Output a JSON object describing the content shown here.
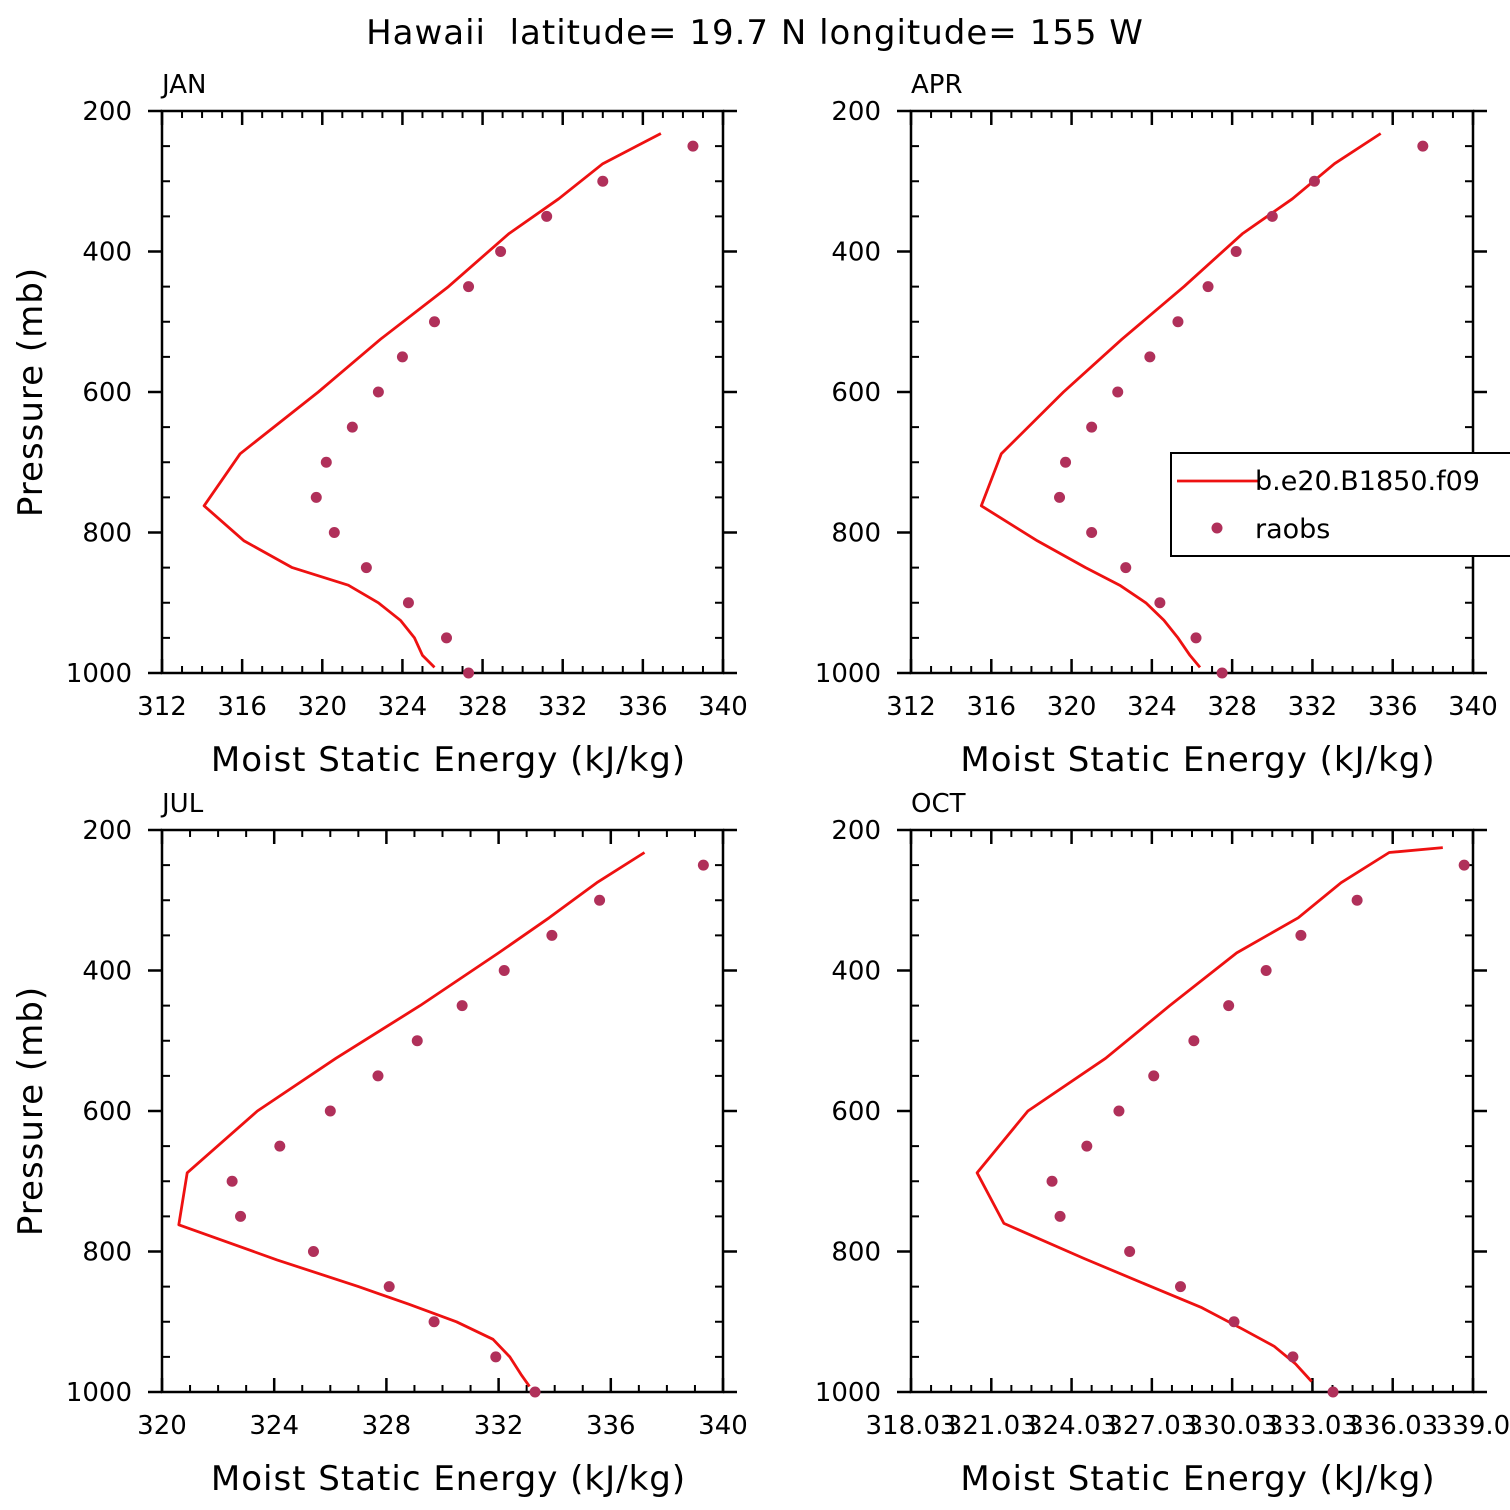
{
  "figure": {
    "title": "Hawaii  latitude= 19.7 N longitude= 155 W",
    "colors": {
      "model_line": "#ee1111",
      "obs_marker": "#b0305a",
      "axes": "#000000",
      "background": "#ffffff"
    }
  },
  "chart_data": [
    {
      "type": "line",
      "panel": "JAN",
      "title": "JAN",
      "xlabel": "Moist Static Energy (kJ/kg)",
      "ylabel": "Pressure (mb)",
      "xlim": [
        312,
        340
      ],
      "ylim": [
        1000,
        200
      ],
      "xticks": [
        312,
        316,
        320,
        324,
        328,
        332,
        336,
        340
      ],
      "xtick_labels": [
        "312",
        "316",
        "320",
        "324",
        "328",
        "332",
        "336",
        "340"
      ],
      "yticks": [
        200,
        400,
        600,
        800,
        1000
      ],
      "ytick_labels": [
        "200",
        "400",
        "600",
        "800",
        "1000"
      ],
      "series": [
        {
          "name": "b.e20.B1850.f09",
          "kind": "line",
          "x": [
            325.6,
            325.0,
            324.6,
            323.9,
            322.8,
            321.3,
            318.5,
            316.1,
            314.1,
            315.9,
            319.8,
            322.9,
            326.3,
            329.3,
            331.8,
            334.0,
            336.9
          ],
          "y": [
            992,
            975,
            950,
            925,
            900,
            875,
            850,
            812,
            762,
            688,
            600,
            525,
            450,
            375,
            325,
            275,
            232
          ]
        },
        {
          "name": "raobs",
          "kind": "scatter",
          "x": [
            327.3,
            326.2,
            324.3,
            322.2,
            320.6,
            319.7,
            320.2,
            321.5,
            322.8,
            324.0,
            325.6,
            327.3,
            328.9,
            331.2,
            334.0,
            338.5
          ],
          "y": [
            1000,
            950,
            900,
            850,
            800,
            750,
            700,
            650,
            600,
            550,
            500,
            450,
            400,
            350,
            300,
            250
          ]
        }
      ]
    },
    {
      "type": "line",
      "panel": "APR",
      "title": "APR",
      "xlabel": "Moist Static Energy (kJ/kg)",
      "ylabel": "",
      "xlim": [
        312,
        340
      ],
      "ylim": [
        1000,
        200
      ],
      "xticks": [
        312,
        316,
        320,
        324,
        328,
        332,
        336,
        340
      ],
      "xtick_labels": [
        "312",
        "316",
        "320",
        "324",
        "328",
        "332",
        "336",
        "340"
      ],
      "yticks": [
        200,
        400,
        600,
        800,
        1000
      ],
      "ytick_labels": [
        "200",
        "400",
        "600",
        "800",
        "1000"
      ],
      "legend": {
        "placement": "right",
        "entries": [
          "b.e20.B1850.f09",
          "raobs"
        ]
      },
      "series": [
        {
          "name": "b.e20.B1850.f09",
          "kind": "line",
          "x": [
            326.4,
            325.9,
            325.3,
            324.6,
            323.7,
            322.4,
            320.7,
            318.3,
            315.5,
            316.5,
            319.6,
            322.5,
            325.6,
            328.5,
            331.0,
            333.1,
            335.4
          ],
          "y": [
            992,
            975,
            950,
            925,
            900,
            875,
            850,
            812,
            762,
            688,
            600,
            525,
            450,
            375,
            325,
            275,
            232
          ]
        },
        {
          "name": "raobs",
          "kind": "scatter",
          "x": [
            327.5,
            326.2,
            324.4,
            322.7,
            321.0,
            319.4,
            319.7,
            321.0,
            322.3,
            323.9,
            325.3,
            326.8,
            328.2,
            330.0,
            332.1,
            337.5
          ],
          "y": [
            1000,
            950,
            900,
            850,
            800,
            750,
            700,
            650,
            600,
            550,
            500,
            450,
            400,
            350,
            300,
            250
          ]
        }
      ]
    },
    {
      "type": "line",
      "panel": "JUL",
      "title": "JUL",
      "xlabel": "Moist Static Energy (kJ/kg)",
      "ylabel": "Pressure (mb)",
      "xlim": [
        320,
        340
      ],
      "ylim": [
        1000,
        200
      ],
      "xticks": [
        320,
        324,
        328,
        332,
        336,
        340
      ],
      "xtick_labels": [
        "320",
        "324",
        "328",
        "332",
        "336",
        "340"
      ],
      "yticks": [
        200,
        400,
        600,
        800,
        1000
      ],
      "ytick_labels": [
        "200",
        "400",
        "600",
        "800",
        "1000"
      ],
      "series": [
        {
          "name": "b.e20.B1850.f09",
          "kind": "line",
          "x": [
            333.1,
            332.8,
            332.4,
            331.8,
            330.5,
            328.8,
            327.0,
            324.1,
            320.6,
            320.9,
            323.4,
            326.2,
            329.2,
            332.0,
            333.8,
            335.5,
            337.2
          ],
          "y": [
            992,
            975,
            950,
            925,
            900,
            875,
            850,
            812,
            762,
            688,
            600,
            525,
            450,
            375,
            325,
            275,
            232
          ]
        },
        {
          "name": "raobs",
          "kind": "scatter",
          "x": [
            333.3,
            331.9,
            329.7,
            328.1,
            325.4,
            322.8,
            322.5,
            324.2,
            326.0,
            327.7,
            329.1,
            330.7,
            332.2,
            333.9,
            335.6,
            339.3
          ],
          "y": [
            1000,
            950,
            900,
            850,
            800,
            750,
            700,
            650,
            600,
            550,
            500,
            450,
            400,
            350,
            300,
            250
          ]
        }
      ]
    },
    {
      "type": "line",
      "panel": "OCT",
      "title": "OCT",
      "xlabel": "Moist Static Energy (kJ/kg)",
      "ylabel": "",
      "xlim": [
        318.03,
        339.03
      ],
      "ylim": [
        1000,
        200
      ],
      "xticks": [
        318.03,
        321.03,
        324.03,
        327.03,
        330.03,
        333.03,
        336.03,
        339.03
      ],
      "xtick_labels": [
        "318.03",
        "321.03",
        "324.03",
        "327.03",
        "330.03",
        "333.03",
        "336.03",
        "339.0"
      ],
      "yticks": [
        200,
        400,
        600,
        800,
        1000
      ],
      "ytick_labels": [
        "200",
        "400",
        "600",
        "800",
        "1000"
      ],
      "series": [
        {
          "name": "b.e20.B1850.f09",
          "kind": "line",
          "x": [
            333.0,
            332.4,
            331.6,
            330.4,
            328.9,
            327.0,
            324.5,
            321.5,
            320.5,
            322.4,
            325.3,
            327.7,
            330.2,
            332.5,
            334.1,
            335.9,
            337.9
          ],
          "y": [
            985,
            960,
            935,
            910,
            880,
            850,
            810,
            760,
            688,
            600,
            525,
            450,
            375,
            325,
            275,
            232,
            225
          ]
        },
        {
          "name": "raobs",
          "kind": "scatter",
          "x": [
            333.8,
            332.3,
            330.1,
            328.1,
            326.2,
            323.6,
            323.3,
            324.6,
            325.8,
            327.1,
            328.6,
            329.9,
            331.3,
            332.6,
            334.7,
            338.7
          ],
          "y": [
            1000,
            950,
            900,
            850,
            800,
            750,
            700,
            650,
            600,
            550,
            500,
            450,
            400,
            350,
            300,
            250
          ]
        }
      ]
    }
  ]
}
